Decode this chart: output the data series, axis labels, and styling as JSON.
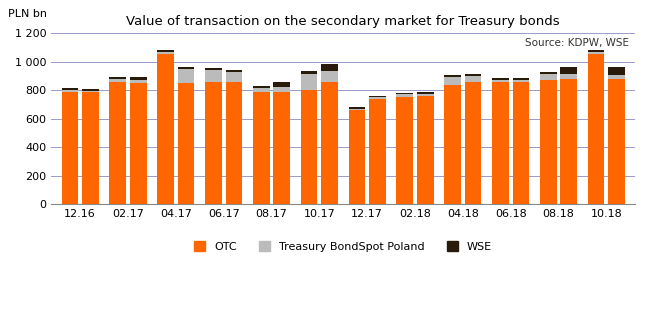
{
  "title": "Value of transaction on the secondary market for Treasury bonds",
  "ylabel": "PLN bn",
  "source_text": "Source: KDPW, WSE",
  "categories": [
    "12.16",
    "02.17",
    "04.17",
    "06.17",
    "08.17",
    "10.17",
    "12.17",
    "02.18",
    "04.18",
    "06.18",
    "08.18",
    "10.18"
  ],
  "ylim": [
    0,
    1200
  ],
  "yticks": [
    0,
    200,
    400,
    600,
    800,
    1000,
    1200
  ],
  "colors": {
    "otc": "#FF6600",
    "bondspot": "#BBBBBB",
    "wse": "#2A1A0A",
    "grid": "#9999CC",
    "background": "#FFFFFF"
  },
  "bar_data": {
    "otc_left": [
      790,
      855,
      1055,
      855,
      790,
      800,
      660,
      750,
      840,
      855,
      870,
      1055
    ],
    "bondspot_left": [
      10,
      25,
      15,
      85,
      25,
      115,
      10,
      25,
      55,
      20,
      45,
      15
    ],
    "wse_left": [
      15,
      15,
      10,
      15,
      15,
      20,
      10,
      5,
      15,
      10,
      15,
      15
    ],
    "otc_right": [
      785,
      850,
      850,
      860,
      790,
      855,
      740,
      760,
      855,
      855,
      880,
      880
    ],
    "bondspot_right": [
      10,
      25,
      100,
      65,
      35,
      80,
      10,
      15,
      45,
      20,
      35,
      30
    ],
    "wse_right": [
      15,
      15,
      15,
      15,
      30,
      50,
      10,
      10,
      15,
      10,
      50,
      55
    ]
  },
  "bar_width": 0.35,
  "bar_gap": 0.08
}
